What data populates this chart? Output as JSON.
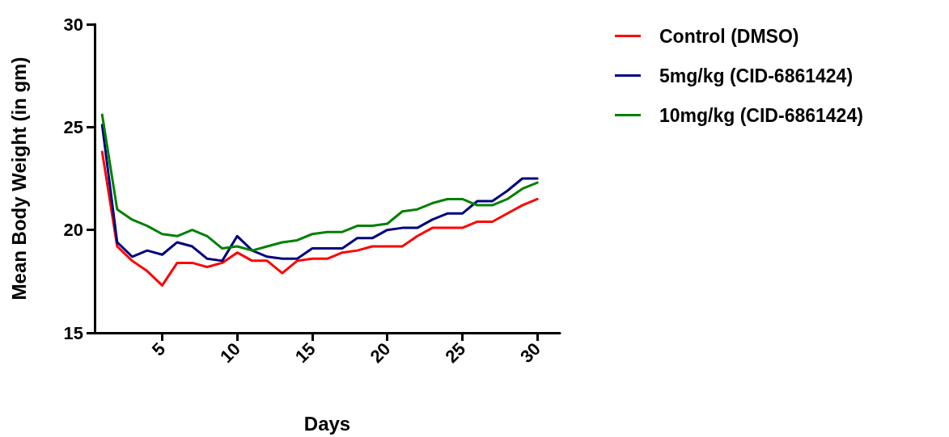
{
  "chart_data": {
    "type": "line",
    "xlabel": "Days",
    "ylabel": "Mean Body Weight (in gm)",
    "x": [
      1,
      2,
      3,
      4,
      5,
      6,
      7,
      8,
      9,
      10,
      11,
      12,
      13,
      14,
      15,
      16,
      17,
      18,
      19,
      20,
      21,
      22,
      23,
      24,
      25,
      26,
      27,
      28,
      29,
      30
    ],
    "series": [
      {
        "name": "Control (DMSO)",
        "color": "#ff0000",
        "values": [
          23.8,
          19.2,
          18.5,
          18.0,
          17.3,
          18.4,
          18.4,
          18.2,
          18.4,
          18.9,
          18.5,
          18.5,
          17.9,
          18.5,
          18.6,
          18.6,
          18.9,
          19.0,
          19.2,
          19.2,
          19.2,
          19.7,
          20.1,
          20.1,
          20.1,
          20.4,
          20.4,
          20.8,
          21.2,
          21.5
        ]
      },
      {
        "name": "5mg/kg (CID-6861424)",
        "color": "#000080",
        "values": [
          25.1,
          19.4,
          18.7,
          19.0,
          18.8,
          19.4,
          19.2,
          18.6,
          18.5,
          19.7,
          19.0,
          18.7,
          18.6,
          18.6,
          19.1,
          19.1,
          19.1,
          19.6,
          19.6,
          20.0,
          20.1,
          20.1,
          20.5,
          20.8,
          20.8,
          21.4,
          21.4,
          21.9,
          22.5,
          22.5
        ]
      },
      {
        "name": "10mg/kg (CID-6861424)",
        "color": "#008000",
        "values": [
          25.6,
          21.0,
          20.5,
          20.2,
          19.8,
          19.7,
          20.0,
          19.7,
          19.1,
          19.2,
          19.0,
          19.2,
          19.4,
          19.5,
          19.8,
          19.9,
          19.9,
          20.2,
          20.2,
          20.3,
          20.9,
          21.0,
          21.3,
          21.5,
          21.5,
          21.2,
          21.2,
          21.5,
          22.0,
          22.3
        ]
      }
    ],
    "xlim": [
      0.5,
      31.5
    ],
    "xticks": [
      5,
      10,
      15,
      20,
      25,
      30
    ],
    "ylim": [
      15,
      30
    ],
    "yticks": [
      15,
      20,
      25,
      30
    ],
    "grid": false,
    "legend": "right",
    "marker": "none",
    "line_style": "solid"
  }
}
